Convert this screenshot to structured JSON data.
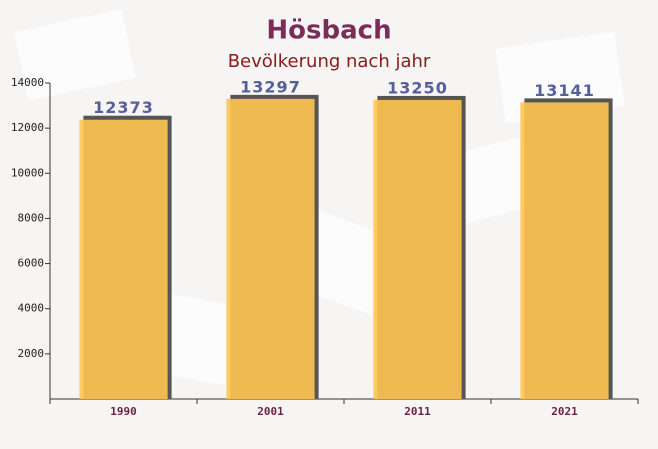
{
  "chart_data": {
    "type": "bar",
    "title": "Hösbach",
    "subtitle": "Bevölkerung nach jahr",
    "categories": [
      "1990",
      "2001",
      "2011",
      "2021"
    ],
    "values": [
      12373,
      13297,
      13250,
      13141
    ],
    "color": "#ffc550",
    "ylim": [
      0,
      14000
    ],
    "yticks": [
      2000,
      4000,
      6000,
      8000,
      10000,
      12000,
      14000
    ]
  }
}
